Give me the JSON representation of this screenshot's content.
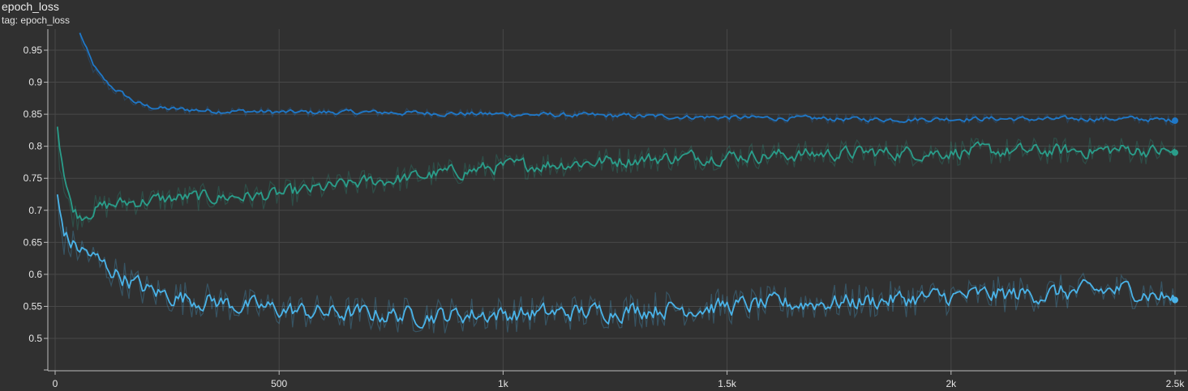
{
  "header": {
    "title": "epoch_loss",
    "tag_label": "tag: epoch_loss"
  },
  "colors": {
    "background": "#303030",
    "grid": "#484848",
    "axis": "#bdbdbd",
    "series_dark_blue": "#1f78c8",
    "series_teal": "#2a9d8a",
    "series_light_blue": "#4ab3e8"
  },
  "chart_data": {
    "type": "line",
    "title": "epoch_loss",
    "subtitle": "tag: epoch_loss",
    "xlabel": "",
    "ylabel": "",
    "xlim": [
      -10,
      2510
    ],
    "ylim": [
      0.447,
      0.99
    ],
    "x_ticks": [
      0,
      500,
      1000,
      1500,
      2000,
      2500
    ],
    "x_tick_labels": [
      "0",
      "500",
      "1k",
      "1.5k",
      "2k",
      "2.5k"
    ],
    "y_ticks": [
      0.5,
      0.55,
      0.6,
      0.65,
      0.7,
      0.75,
      0.8,
      0.85,
      0.9,
      0.95
    ],
    "y_tick_labels": [
      "0.5",
      "0.55",
      "0.6",
      "0.65",
      "0.7",
      "0.75",
      "0.8",
      "0.85",
      "0.9",
      "0.95"
    ],
    "grid": true,
    "legend": "none",
    "series": [
      {
        "color": "#1f78c8",
        "x": [
          55,
          65,
          80,
          100,
          125,
          150,
          175,
          200,
          250,
          300,
          350,
          400,
          450,
          500,
          600,
          700,
          800,
          900,
          1000,
          1100,
          1200,
          1300,
          1400,
          1500,
          1600,
          1700,
          1800,
          1900,
          2000,
          2100,
          2200,
          2300,
          2400,
          2500
        ],
        "y": [
          0.975,
          0.95,
          0.925,
          0.905,
          0.89,
          0.88,
          0.868,
          0.862,
          0.858,
          0.857,
          0.855,
          0.855,
          0.854,
          0.853,
          0.853,
          0.853,
          0.852,
          0.851,
          0.85,
          0.849,
          0.848,
          0.847,
          0.846,
          0.845,
          0.844,
          0.843,
          0.842,
          0.842,
          0.843,
          0.843,
          0.842,
          0.843,
          0.843,
          0.84
        ]
      },
      {
        "color": "#2a9d8a",
        "x": [
          5,
          10,
          15,
          20,
          30,
          40,
          50,
          75,
          100,
          150,
          200,
          250,
          300,
          350,
          400,
          450,
          500,
          550,
          600,
          650,
          700,
          750,
          800,
          850,
          900,
          950,
          1000,
          1100,
          1200,
          1300,
          1400,
          1500,
          1600,
          1700,
          1800,
          1900,
          2000,
          2100,
          2200,
          2300,
          2400,
          2500
        ],
        "y": [
          0.835,
          0.78,
          0.76,
          0.73,
          0.705,
          0.695,
          0.69,
          0.7,
          0.705,
          0.712,
          0.715,
          0.718,
          0.72,
          0.72,
          0.722,
          0.722,
          0.725,
          0.73,
          0.735,
          0.74,
          0.745,
          0.748,
          0.752,
          0.757,
          0.76,
          0.765,
          0.768,
          0.772,
          0.776,
          0.78,
          0.783,
          0.785,
          0.786,
          0.788,
          0.79,
          0.79,
          0.791,
          0.792,
          0.792,
          0.793,
          0.795,
          0.79
        ]
      },
      {
        "color": "#4ab3e8",
        "x": [
          5,
          10,
          20,
          30,
          50,
          75,
          100,
          125,
          150,
          200,
          250,
          300,
          350,
          400,
          450,
          500,
          550,
          600,
          650,
          700,
          750,
          800,
          850,
          900,
          950,
          1000,
          1100,
          1200,
          1300,
          1400,
          1500,
          1600,
          1700,
          1800,
          1900,
          2000,
          2100,
          2200,
          2300,
          2400,
          2500
        ],
        "y": [
          0.72,
          0.675,
          0.655,
          0.645,
          0.64,
          0.63,
          0.615,
          0.605,
          0.595,
          0.575,
          0.567,
          0.562,
          0.558,
          0.552,
          0.548,
          0.545,
          0.542,
          0.54,
          0.539,
          0.538,
          0.537,
          0.536,
          0.536,
          0.537,
          0.538,
          0.538,
          0.539,
          0.542,
          0.545,
          0.548,
          0.55,
          0.553,
          0.556,
          0.558,
          0.562,
          0.565,
          0.568,
          0.57,
          0.573,
          0.576,
          0.56
        ]
      }
    ]
  }
}
